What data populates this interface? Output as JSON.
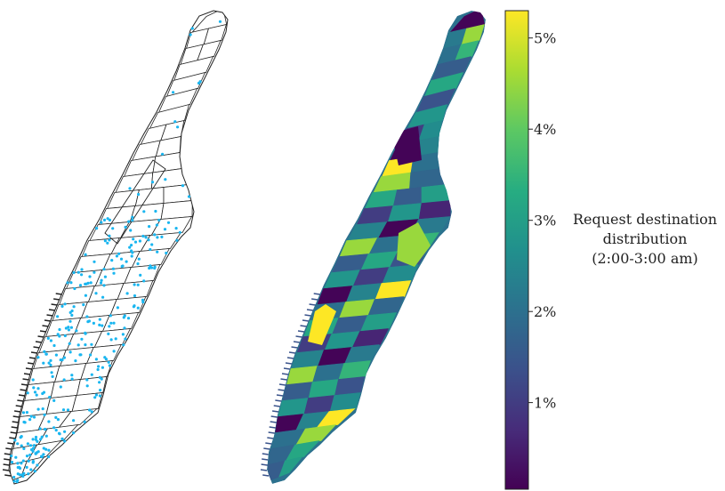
{
  "colorbar": {
    "ticks": [
      {
        "label": "5%",
        "value": 5
      },
      {
        "label": "4%",
        "value": 4
      },
      {
        "label": "3%",
        "value": 3
      },
      {
        "label": "2%",
        "value": 2
      },
      {
        "label": "1%",
        "value": 1
      }
    ],
    "range": [
      0.05,
      5.3
    ],
    "colormap": "viridis",
    "label_lines": [
      "Request destination",
      "distribution",
      "(2:00-3:00 am)"
    ]
  },
  "colors": {
    "point_color": "#1ab6f0",
    "outline_color": "#222222",
    "viridis": [
      "#440154",
      "#472c7a",
      "#3b518b",
      "#2c718e",
      "#21908d",
      "#27ad81",
      "#5cc863",
      "#aadc32",
      "#fde725"
    ]
  },
  "chart_data": {
    "type": "heatmap",
    "title": "",
    "colorbar_label": "Request destination distribution (2:00-3:00 am)",
    "unit": "%",
    "scale_range": [
      0.05,
      5.3
    ],
    "zone_values": [
      0.1,
      0.6,
      1.0,
      1.4,
      1.6,
      1.8,
      2.0,
      2.2,
      2.4,
      2.6,
      2.8,
      3.0,
      3.2,
      3.5,
      4.5,
      5.3
    ]
  }
}
